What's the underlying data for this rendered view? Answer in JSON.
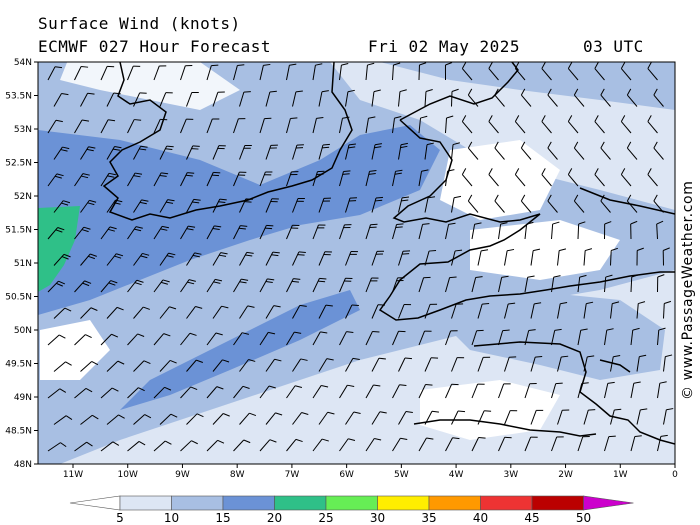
{
  "header": {
    "title": "Surface Wind (knots)",
    "model_line": "ECMWF 027 Hour Forecast",
    "date": "Fri 02 May 2025",
    "time": "03 UTC"
  },
  "credit": "© www.PassageWeather.com",
  "axes": {
    "lat_labels": [
      "54N",
      "53.5N",
      "53N",
      "52.5N",
      "52N",
      "51.5N",
      "51N",
      "50.5N",
      "50N",
      "49.5N",
      "49N",
      "48.5N",
      "48N"
    ],
    "lon_labels": [
      "11W",
      "10W",
      "9W",
      "8W",
      "7W",
      "6W",
      "5W",
      "4W",
      "3W",
      "2W",
      "1W",
      "0"
    ]
  },
  "legend": {
    "labels": [
      "5",
      "10",
      "15",
      "20",
      "25",
      "30",
      "35",
      "40",
      "45",
      "50"
    ],
    "colors": [
      "#dde6f4",
      "#a8bfe3",
      "#6b92d6",
      "#2fc088",
      "#66ee55",
      "#ffee00",
      "#ff9900",
      "#ee3333",
      "#bb0000",
      "#cc00cc"
    ]
  },
  "wind_scale_colors": {
    "under_5": "#ffffff",
    "5_10": "#dde6f4",
    "10_15": "#a8bfe3",
    "15_20": "#6b92d6",
    "20_25": "#2fc088"
  }
}
